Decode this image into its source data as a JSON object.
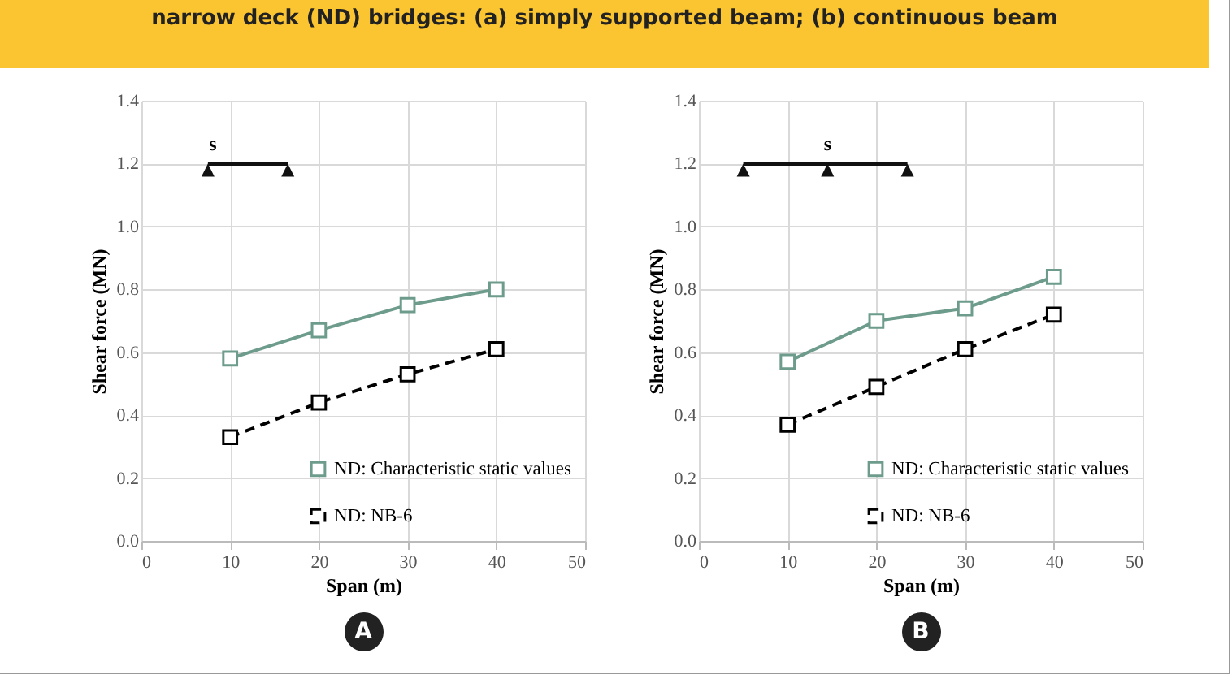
{
  "chart_data": [
    {
      "type": "line",
      "title": "narrow deck (ND) bridges: (a) simply supported beam; (b) continuous beam",
      "xlabel": "Span (m)",
      "ylabel": "Shear force (MN)",
      "annotations": [
        "s",
        "A"
      ],
      "x": [
        10,
        20,
        30,
        40
      ],
      "series": [
        {
          "name": "ND: Characteristic static values",
          "color": "#6e9c8c",
          "line_style": "solid",
          "values": [
            0.58,
            0.67,
            0.75,
            0.8
          ]
        },
        {
          "name": "ND: NB-6",
          "color": "#000000",
          "line_style": "dashed",
          "values": [
            0.33,
            0.44,
            0.53,
            0.61
          ]
        }
      ],
      "xlim": [
        0,
        50
      ],
      "xticks": [
        0,
        10,
        20,
        30,
        40,
        50
      ],
      "ylim": [
        0,
        1.4
      ],
      "yticks": [
        {
          "value": 0,
          "label": "0.0"
        },
        {
          "value": 0.2,
          "label": "0.2"
        },
        {
          "value": 0.4,
          "label": "0.4"
        },
        {
          "value": 0.6,
          "label": "0.6"
        },
        {
          "value": 0.8,
          "label": "0.8"
        },
        {
          "value": 1,
          "label": "1.0"
        },
        {
          "value": 1.2,
          "label": "1.2"
        },
        {
          "value": 1.4,
          "label": "1.4"
        }
      ],
      "grid": true,
      "legend": "bottom right",
      "marker": "square"
    },
    {
      "type": "line",
      "xlabel": "Span (m)",
      "ylabel": "Shear force (MN)",
      "annotations": [
        "s",
        "B"
      ],
      "x": [
        10,
        20,
        30,
        40
      ],
      "series": [
        {
          "name": "ND: Characteristic static values",
          "color": "#6e9c8c",
          "line_style": "solid",
          "values": [
            0.57,
            0.7,
            0.74,
            0.84
          ]
        },
        {
          "name": "ND: NB-6",
          "color": "#000000",
          "line_style": "dashed",
          "values": [
            0.37,
            0.49,
            0.61,
            0.72
          ]
        }
      ],
      "xlim": [
        0,
        50
      ],
      "xticks": [
        0,
        10,
        20,
        30,
        40,
        50
      ],
      "ylim": [
        0,
        1.4
      ],
      "yticks": [
        {
          "value": 0,
          "label": "0.0"
        },
        {
          "value": 0.2,
          "label": "0.2"
        },
        {
          "value": 0.4,
          "label": "0.4"
        },
        {
          "value": 0.6,
          "label": "0.6"
        },
        {
          "value": 0.8,
          "label": "0.8"
        },
        {
          "value": 1,
          "label": "1.0"
        },
        {
          "value": 1.2,
          "label": "1.2"
        },
        {
          "value": 1.4,
          "label": "1.4"
        }
      ],
      "grid": true,
      "legend": "bottom right",
      "marker": "square"
    }
  ]
}
